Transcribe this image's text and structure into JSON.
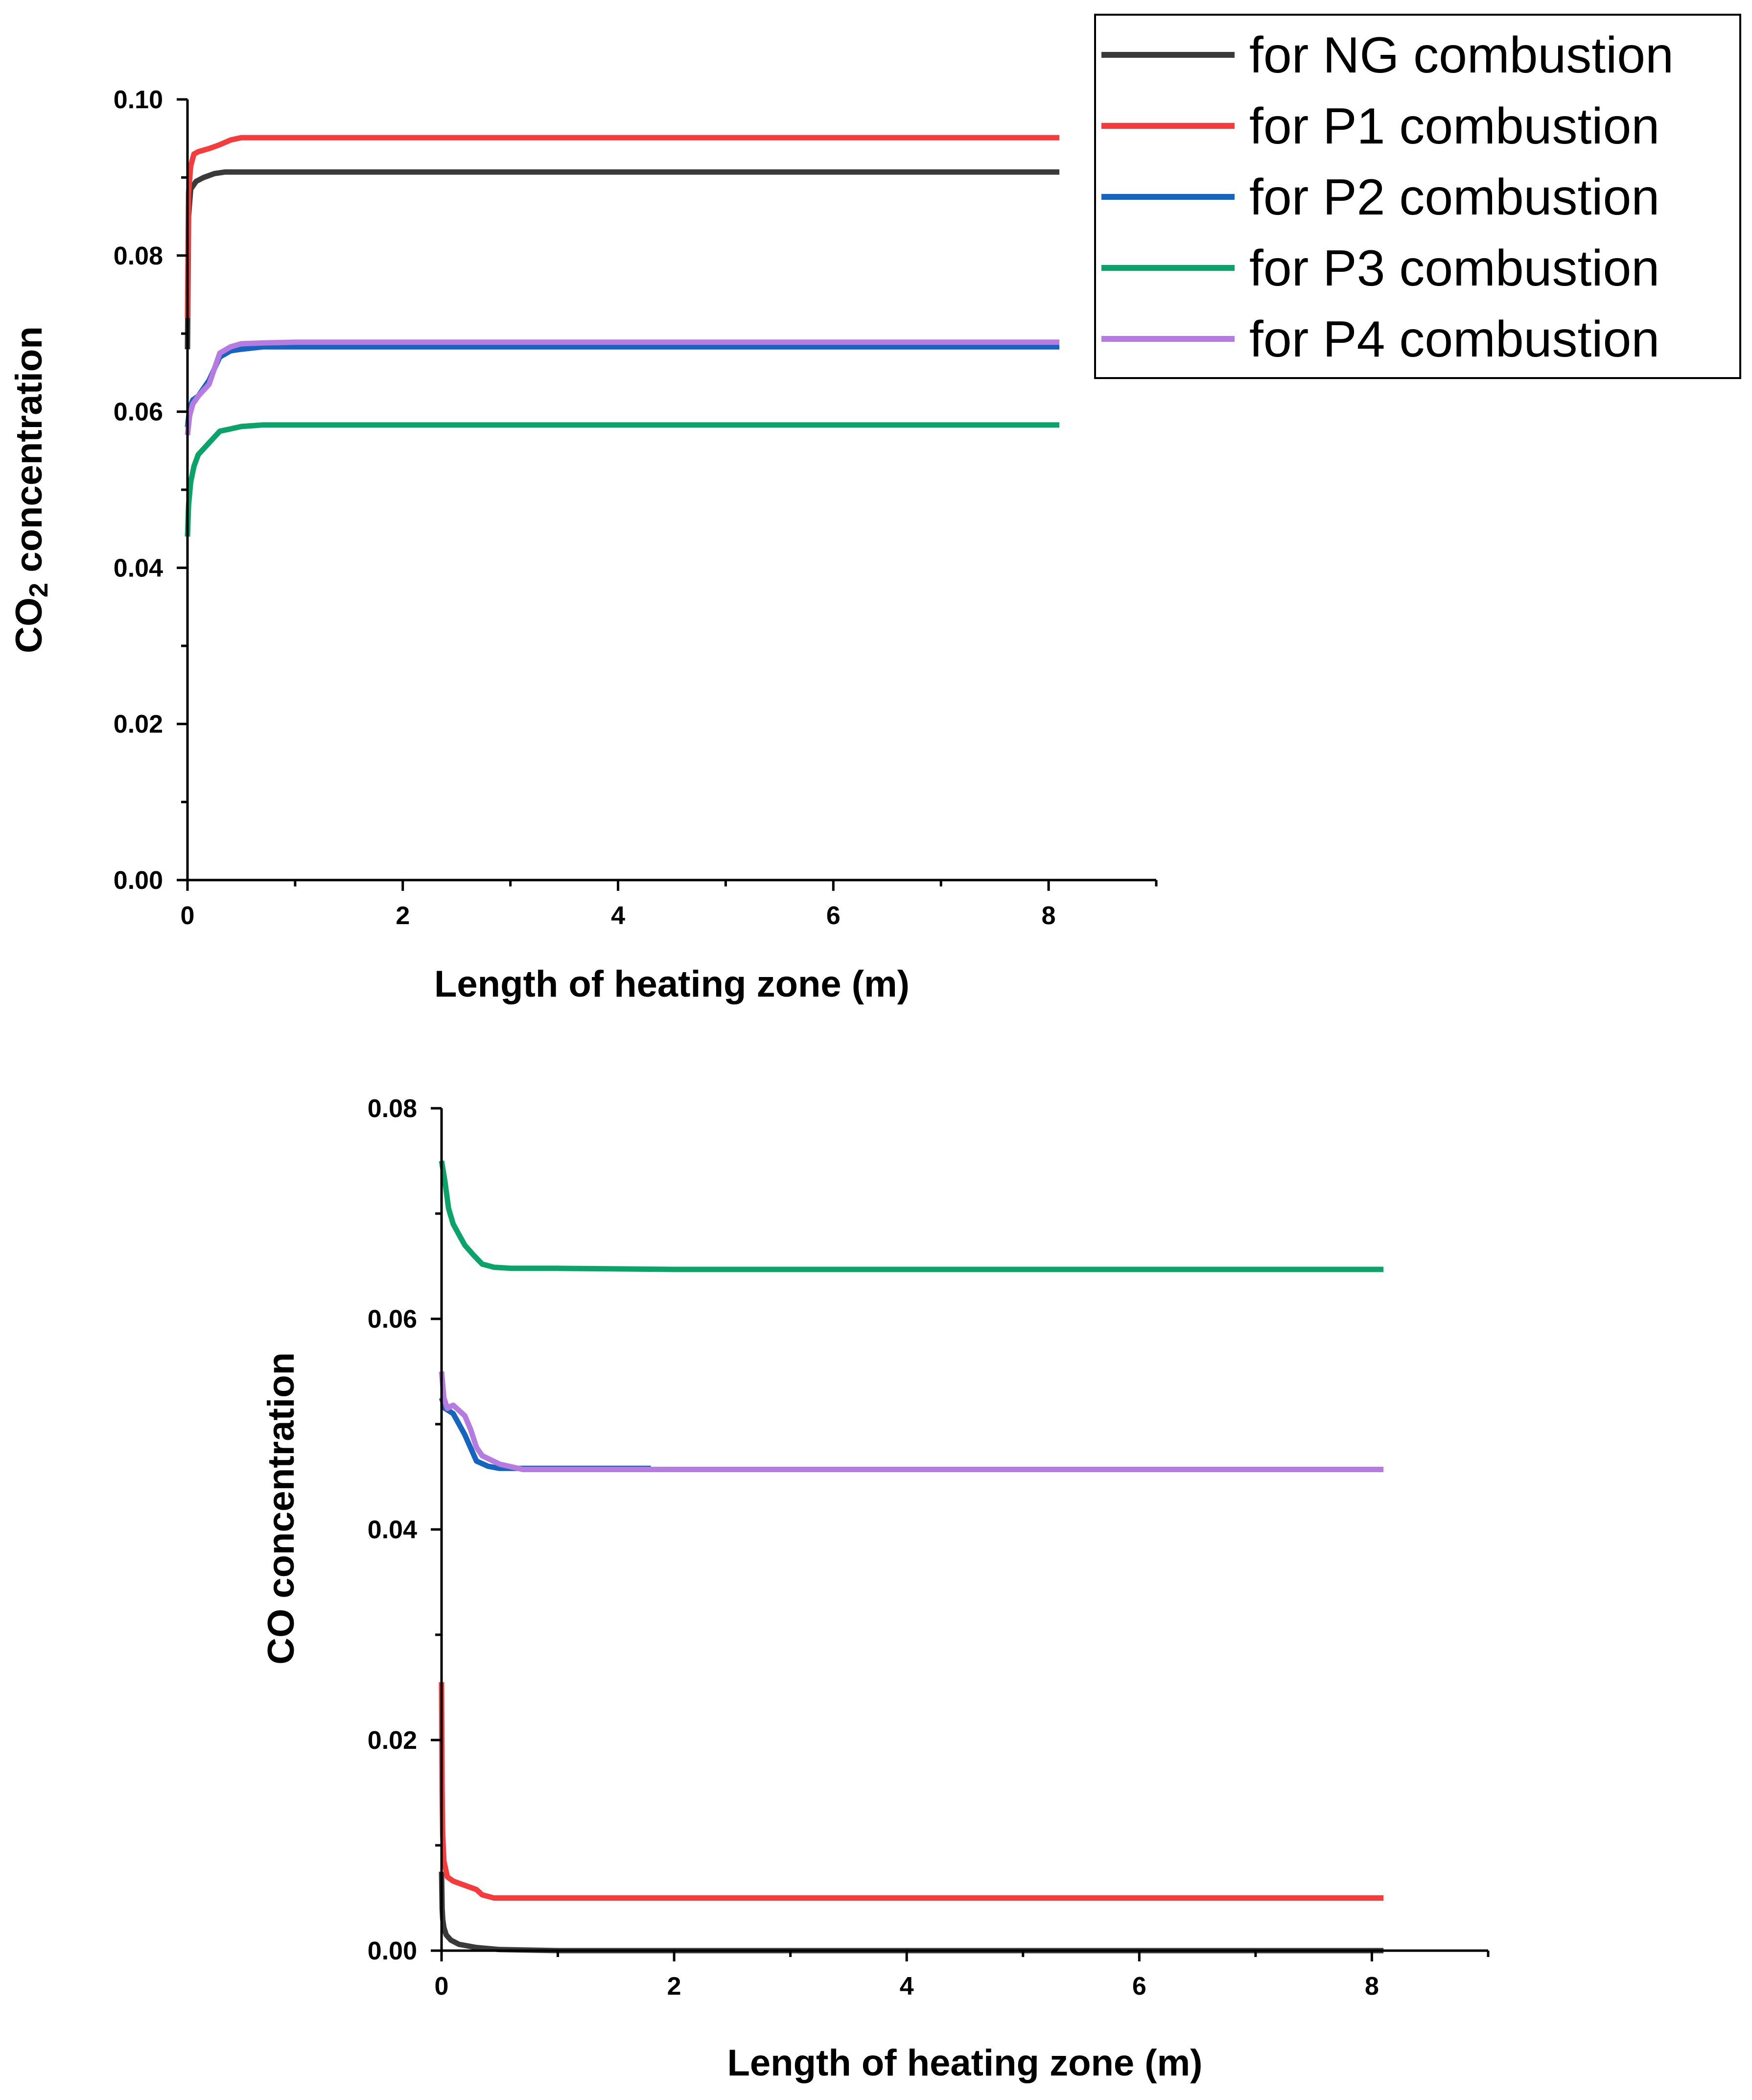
{
  "colors": {
    "ng": "#3a3a3a",
    "p1": "#f53b3b",
    "p2": "#1565c0",
    "p3": "#0aa36a",
    "p4": "#b57be0"
  },
  "legend": {
    "items": [
      {
        "key": "ng",
        "label": "for NG combustion"
      },
      {
        "key": "p1",
        "label": "for P1 combustion"
      },
      {
        "key": "p2",
        "label": "for P2 combustion"
      },
      {
        "key": "p3",
        "label": "for P3 combustion"
      },
      {
        "key": "p4",
        "label": "for P4 combustion"
      }
    ]
  },
  "chart_data": [
    {
      "type": "line",
      "title": "",
      "xlabel": "Length of heating zone (m)",
      "ylabel_main": "CO",
      "ylabel_sub": "2",
      "ylabel_rest": " concentration",
      "xlim": [
        0,
        9
      ],
      "ylim": [
        0,
        0.1
      ],
      "xticks": [
        "0",
        "2",
        "4",
        "6",
        "8"
      ],
      "xtick_values": [
        0,
        2,
        4,
        6,
        8
      ],
      "yticks": [
        "0.00",
        "0.02",
        "0.04",
        "0.06",
        "0.08",
        "0.10"
      ],
      "ytick_values": [
        0,
        0.02,
        0.04,
        0.06,
        0.08,
        0.1
      ],
      "series": [
        {
          "key": "ng",
          "name": "for NG combustion",
          "x": [
            0,
            0.01,
            0.03,
            0.08,
            0.15,
            0.25,
            0.35,
            0.5,
            1,
            8.1
          ],
          "y": [
            0.068,
            0.085,
            0.0885,
            0.0895,
            0.09,
            0.0905,
            0.0907,
            0.0907,
            0.0907,
            0.0907
          ]
        },
        {
          "key": "p1",
          "name": "for P1 combustion",
          "x": [
            0,
            0.01,
            0.03,
            0.06,
            0.1,
            0.2,
            0.3,
            0.4,
            0.5,
            1,
            8.1
          ],
          "y": [
            0.072,
            0.088,
            0.0915,
            0.093,
            0.0933,
            0.0937,
            0.0942,
            0.0948,
            0.0951,
            0.0951,
            0.0951
          ]
        },
        {
          "key": "p2",
          "name": "for P2 combustion",
          "x": [
            0,
            0.02,
            0.05,
            0.1,
            0.2,
            0.3,
            0.4,
            0.5,
            0.7,
            1,
            8.1
          ],
          "y": [
            0.058,
            0.0605,
            0.0615,
            0.062,
            0.064,
            0.067,
            0.0678,
            0.068,
            0.0683,
            0.0683,
            0.0683
          ]
        },
        {
          "key": "p3",
          "name": "for P3 combustion",
          "x": [
            0,
            0.01,
            0.03,
            0.06,
            0.1,
            0.2,
            0.3,
            0.4,
            0.5,
            0.7,
            1,
            8.1
          ],
          "y": [
            0.044,
            0.048,
            0.051,
            0.053,
            0.0545,
            0.056,
            0.0575,
            0.0578,
            0.0581,
            0.0583,
            0.0583,
            0.0583
          ]
        },
        {
          "key": "p4",
          "name": "for P4 combustion",
          "x": [
            0,
            0.02,
            0.05,
            0.1,
            0.2,
            0.3,
            0.4,
            0.5,
            0.7,
            1,
            8.1
          ],
          "y": [
            0.057,
            0.0595,
            0.061,
            0.062,
            0.0635,
            0.0675,
            0.0683,
            0.0687,
            0.0688,
            0.0689,
            0.0689
          ]
        }
      ]
    },
    {
      "type": "line",
      "title": "",
      "xlabel": "Length of heating zone (m)",
      "ylabel_main": "CO concentration",
      "ylabel_sub": "",
      "ylabel_rest": "",
      "xlim": [
        0,
        9
      ],
      "ylim": [
        0,
        0.08
      ],
      "xticks": [
        "0",
        "2",
        "4",
        "6",
        "8"
      ],
      "xtick_values": [
        0,
        2,
        4,
        6,
        8
      ],
      "yticks": [
        "0.00",
        "0.02",
        "0.04",
        "0.06",
        "0.08"
      ],
      "ytick_values": [
        0,
        0.02,
        0.04,
        0.06,
        0.08
      ],
      "series": [
        {
          "key": "ng",
          "name": "for NG combustion",
          "x": [
            0,
            0.005,
            0.01,
            0.02,
            0.04,
            0.08,
            0.15,
            0.3,
            0.5,
            1,
            8.1
          ],
          "y": [
            0.0075,
            0.004,
            0.003,
            0.0022,
            0.0015,
            0.001,
            0.0006,
            0.0003,
            0.0001,
            0.0,
            0.0
          ]
        },
        {
          "key": "p1",
          "name": "for P1 combustion",
          "x": [
            0,
            0.005,
            0.01,
            0.02,
            0.05,
            0.1,
            0.2,
            0.3,
            0.35,
            0.45,
            0.6,
            1,
            8.1
          ],
          "y": [
            0.0255,
            0.015,
            0.011,
            0.0085,
            0.007,
            0.0066,
            0.0062,
            0.0058,
            0.0053,
            0.005,
            0.005,
            0.005,
            0.005
          ]
        },
        {
          "key": "p2",
          "name": "for P2 combustion",
          "x": [
            0,
            0.03,
            0.1,
            0.2,
            0.3,
            0.4,
            0.5,
            0.7,
            1.8
          ],
          "y": [
            0.0525,
            0.0515,
            0.051,
            0.049,
            0.0465,
            0.046,
            0.0458,
            0.0458,
            0.0458
          ]
        },
        {
          "key": "p3",
          "name": "for P3 combustion",
          "x": [
            0,
            0.03,
            0.06,
            0.1,
            0.15,
            0.2,
            0.28,
            0.35,
            0.45,
            0.6,
            1,
            2,
            8.1
          ],
          "y": [
            0.075,
            0.073,
            0.0705,
            0.069,
            0.068,
            0.067,
            0.066,
            0.0652,
            0.0649,
            0.0648,
            0.0648,
            0.0647,
            0.0647
          ]
        },
        {
          "key": "p4",
          "name": "for P4 combustion",
          "x": [
            0,
            0.02,
            0.05,
            0.08,
            0.1,
            0.2,
            0.25,
            0.3,
            0.35,
            0.5,
            0.7,
            1,
            8.1
          ],
          "y": [
            0.055,
            0.0525,
            0.0515,
            0.0517,
            0.0518,
            0.0508,
            0.0495,
            0.0478,
            0.047,
            0.0462,
            0.0457,
            0.0457,
            0.0457
          ]
        }
      ]
    }
  ]
}
